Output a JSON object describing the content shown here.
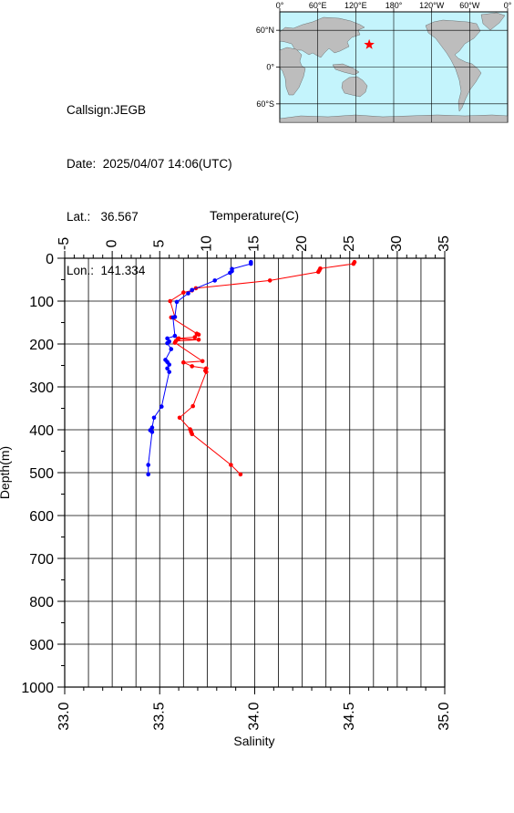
{
  "info": {
    "callsign": "Callsign:JEGB",
    "date": "Date:  2025/04/07 14:06(UTC)",
    "lat": "Lat.:   36.567",
    "lon": "Lon.:  141.334"
  },
  "map": {
    "lon_labels": [
      "0°",
      "60°E",
      "120°E",
      "180°",
      "120°W",
      "60°W",
      "0°"
    ],
    "lat_labels": [
      "60°N",
      "0°",
      "60°S"
    ],
    "station": {
      "lat": 36.567,
      "lon": 141.334
    },
    "colors": {
      "ocean": "#c4f4fc",
      "land": "#bdbdbd",
      "marker": "#ff0000"
    }
  },
  "chart_data": {
    "type": "line",
    "title": "",
    "ylabel": "Depth(m)",
    "top_xlabel": "Temperature(C)",
    "bottom_xlabel": "Salinity",
    "depth_range": [
      0,
      1000
    ],
    "temperature_range": [
      -5,
      35
    ],
    "salinity_range": [
      33.0,
      35.0
    ],
    "depth_ticks": [
      "0",
      "100",
      "200",
      "300",
      "400",
      "500",
      "600",
      "700",
      "800",
      "900",
      "1000"
    ],
    "temperature_ticks": [
      "-5",
      "0",
      "5",
      "10",
      "15",
      "20",
      "25",
      "30",
      "35"
    ],
    "salinity_ticks": [
      "33.0",
      "33.5",
      "34.0",
      "34.5",
      "35.0"
    ],
    "grid": true,
    "series": [
      {
        "name": "Temperature",
        "axis": "top",
        "color": "#ff0000",
        "points": [
          [
            25.5,
            9
          ],
          [
            25.4,
            13
          ],
          [
            21.9,
            24
          ],
          [
            21.8,
            28
          ],
          [
            21.7,
            32
          ],
          [
            16.6,
            52
          ],
          [
            8.8,
            70
          ],
          [
            8.4,
            75
          ],
          [
            7.5,
            80
          ],
          [
            6.1,
            100
          ],
          [
            6.6,
            137
          ],
          [
            6.2,
            138
          ],
          [
            8.9,
            176
          ],
          [
            9.1,
            178
          ],
          [
            8.7,
            184
          ],
          [
            7.0,
            187
          ],
          [
            6.9,
            188
          ],
          [
            9.1,
            190
          ],
          [
            6.7,
            193
          ],
          [
            6.6,
            197
          ],
          [
            9.5,
            240
          ],
          [
            7.5,
            243
          ],
          [
            8.4,
            252
          ],
          [
            9.9,
            257
          ],
          [
            9.8,
            262
          ],
          [
            9.9,
            265
          ],
          [
            8.5,
            345
          ],
          [
            7.1,
            372
          ],
          [
            8.2,
            399
          ],
          [
            8.3,
            405
          ],
          [
            8.4,
            410
          ],
          [
            12.5,
            482
          ],
          [
            13.5,
            504
          ]
        ]
      },
      {
        "name": "Salinity",
        "axis": "bottom",
        "color": "#0000ff",
        "points": [
          [
            33.98,
            9
          ],
          [
            33.98,
            13
          ],
          [
            33.88,
            25
          ],
          [
            33.88,
            30
          ],
          [
            33.87,
            34
          ],
          [
            33.79,
            52
          ],
          [
            33.67,
            74
          ],
          [
            33.65,
            82
          ],
          [
            33.59,
            102
          ],
          [
            33.58,
            137
          ],
          [
            33.57,
            138
          ],
          [
            33.58,
            181
          ],
          [
            33.54,
            187
          ],
          [
            33.55,
            194
          ],
          [
            33.54,
            198
          ],
          [
            33.56,
            212
          ],
          [
            33.53,
            237
          ],
          [
            33.54,
            242
          ],
          [
            33.55,
            248
          ],
          [
            33.54,
            257
          ],
          [
            33.55,
            265
          ],
          [
            33.51,
            346
          ],
          [
            33.47,
            372
          ],
          [
            33.46,
            395
          ],
          [
            33.45,
            401
          ],
          [
            33.46,
            405
          ],
          [
            33.44,
            482
          ],
          [
            33.44,
            504
          ]
        ]
      }
    ]
  }
}
